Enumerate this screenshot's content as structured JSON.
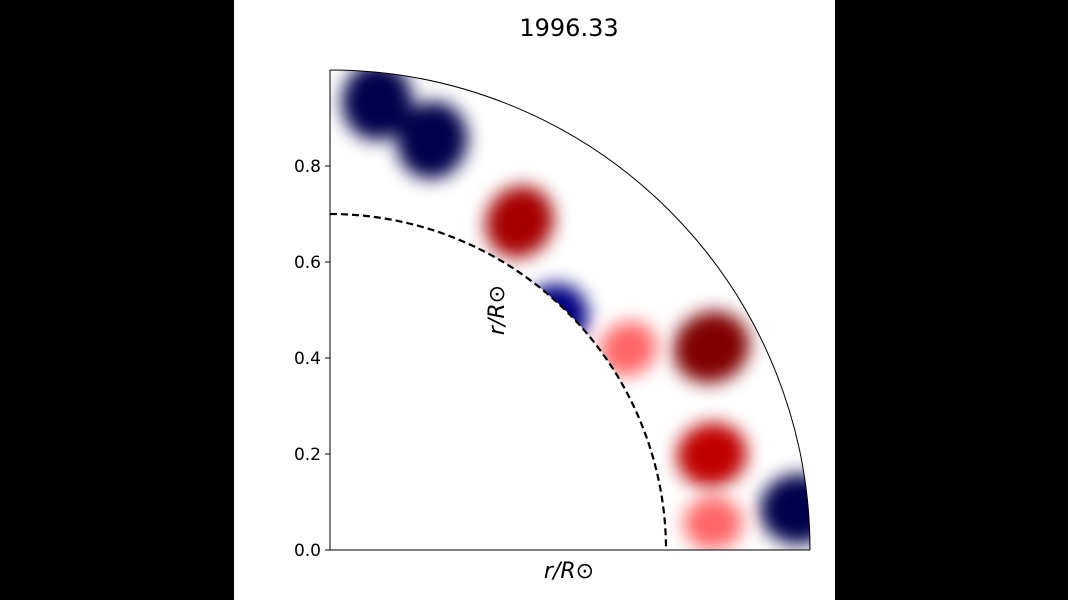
{
  "chart_data": {
    "type": "heatmap",
    "title": "1996.33",
    "xlabel": "r/R⊙",
    "ylabel": "r/R⊙",
    "xlim": [
      0,
      1.0
    ],
    "ylim": [
      0,
      1.0
    ],
    "yticks": [
      0.0,
      0.2,
      0.4,
      0.6,
      0.8
    ],
    "ytick_labels": [
      "0.0",
      "0.2",
      "0.4",
      "0.6",
      "0.8"
    ],
    "outer_radius": 1.0,
    "inner_boundary_radius": 0.7,
    "inner_boundary_style": "dashed",
    "colormap": "seismic",
    "colors": {
      "negative_extreme": "#00004c",
      "negative": "#0000ff",
      "zero": "#ffffff",
      "positive": "#ff0000",
      "positive_extreme": "#800000"
    },
    "features": [
      {
        "r": 0.88,
        "theta_deg": 76,
        "value": -1.0
      },
      {
        "r": 0.94,
        "theta_deg": 84,
        "value": -1.0
      },
      {
        "r": 0.79,
        "theta_deg": 60,
        "value": 0.85
      },
      {
        "r": 0.67,
        "theta_deg": 46,
        "value": -0.85
      },
      {
        "r": 0.9,
        "theta_deg": 28,
        "value": 1.0
      },
      {
        "r": 0.82,
        "theta_deg": 14,
        "value": 0.75
      },
      {
        "r": 0.98,
        "theta_deg": 5,
        "value": -1.0
      },
      {
        "r": 0.8,
        "theta_deg": 4,
        "value": 0.3
      },
      {
        "r": 0.75,
        "theta_deg": 34,
        "value": 0.3
      }
    ]
  }
}
